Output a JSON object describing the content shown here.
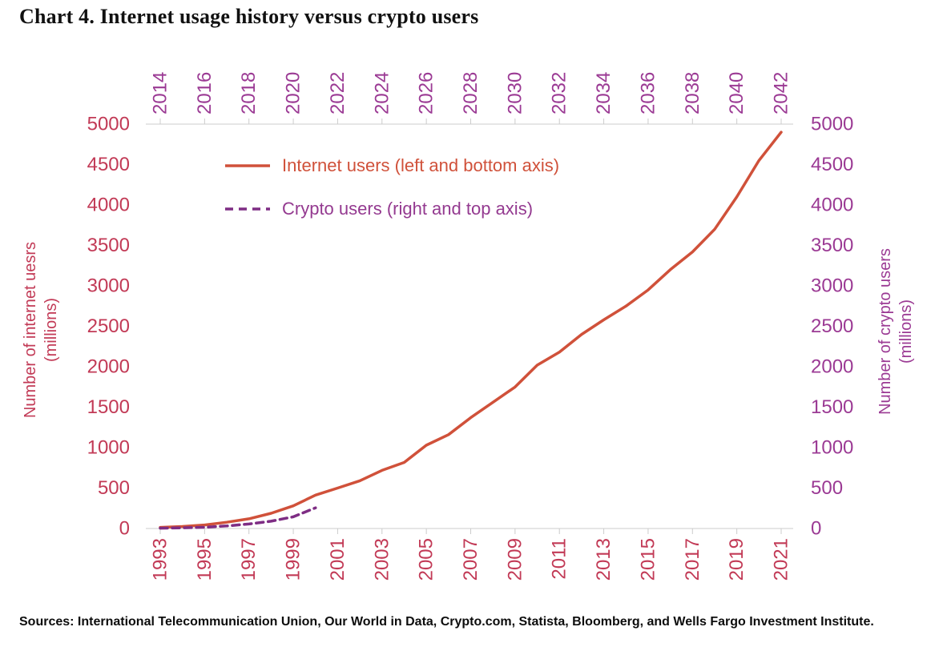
{
  "title": "Chart 4. Internet usage history versus crypto users",
  "sources": "Sources: International Telecommunication Union, Our World in Data, Crypto.com, Statista, Bloomberg, and Wells Fargo Investment Institute.",
  "colors": {
    "title_text": "#111111",
    "crimson_axis": "#c23a56",
    "purple_axis": "#9b3a94",
    "internet_line": "#d0513a",
    "crypto_line": "#7e2d84",
    "crypto_legend_text": "#943a90",
    "axis_line": "#cccccc"
  },
  "axes": {
    "left": {
      "title_line1": "Number of internet uesrs",
      "title_line2": "(millions)",
      "ticks": [
        0,
        500,
        1000,
        1500,
        2000,
        2500,
        3000,
        3500,
        4000,
        4500,
        5000
      ],
      "range": [
        0,
        5000
      ]
    },
    "right": {
      "title_line1": "Number of crypto users",
      "title_line2": "(millions)",
      "ticks": [
        0,
        500,
        1000,
        1500,
        2000,
        2500,
        3000,
        3500,
        4000,
        4500,
        5000
      ],
      "range": [
        0,
        5000
      ]
    },
    "bottom": {
      "tick_labels": [
        "1993",
        "1995",
        "1997",
        "1999",
        "2001",
        "2003",
        "2005",
        "2007",
        "2009",
        "2011",
        "2013",
        "2015",
        "2017",
        "2019",
        "2021"
      ]
    },
    "top": {
      "tick_labels": [
        "2014",
        "2016",
        "2018",
        "2020",
        "2022",
        "2024",
        "2026",
        "2028",
        "2030",
        "2032",
        "2034",
        "2036",
        "2038",
        "2040",
        "2042"
      ]
    }
  },
  "chart_data": {
    "type": "line",
    "title": "Chart 4. Internet usage history versus crypto users",
    "ylim": [
      0,
      5000
    ],
    "grid": false,
    "legend_position": "top-left-inside",
    "x_range_bottom": [
      1993,
      2021
    ],
    "x_range_top": [
      2014,
      2042
    ],
    "series": [
      {
        "name": "Internet users (left and bottom axis)",
        "axis": "left-bottom",
        "style": "solid",
        "color": "#d0513a",
        "x": [
          1993,
          1994,
          1995,
          1996,
          1997,
          1998,
          1999,
          2000,
          2001,
          2002,
          2003,
          2004,
          2005,
          2006,
          2007,
          2008,
          2009,
          2010,
          2011,
          2012,
          2013,
          2014,
          2015,
          2016,
          2017,
          2018,
          2019,
          2020,
          2021
        ],
        "values": [
          14,
          25,
          44,
          77,
          120,
          188,
          280,
          413,
          500,
          590,
          719,
          817,
          1030,
          1160,
          1370,
          1560,
          1750,
          2020,
          2180,
          2400,
          2580,
          2750,
          2950,
          3200,
          3420,
          3700,
          4100,
          4550,
          4900
        ]
      },
      {
        "name": "Crypto users (right and top axis)",
        "axis": "right-top",
        "style": "dashed",
        "color": "#7e2d84",
        "x": [
          2014,
          2015,
          2016,
          2017,
          2018,
          2019,
          2020,
          2021
        ],
        "values": [
          4,
          8,
          15,
          32,
          55,
          90,
          145,
          255
        ]
      }
    ]
  }
}
